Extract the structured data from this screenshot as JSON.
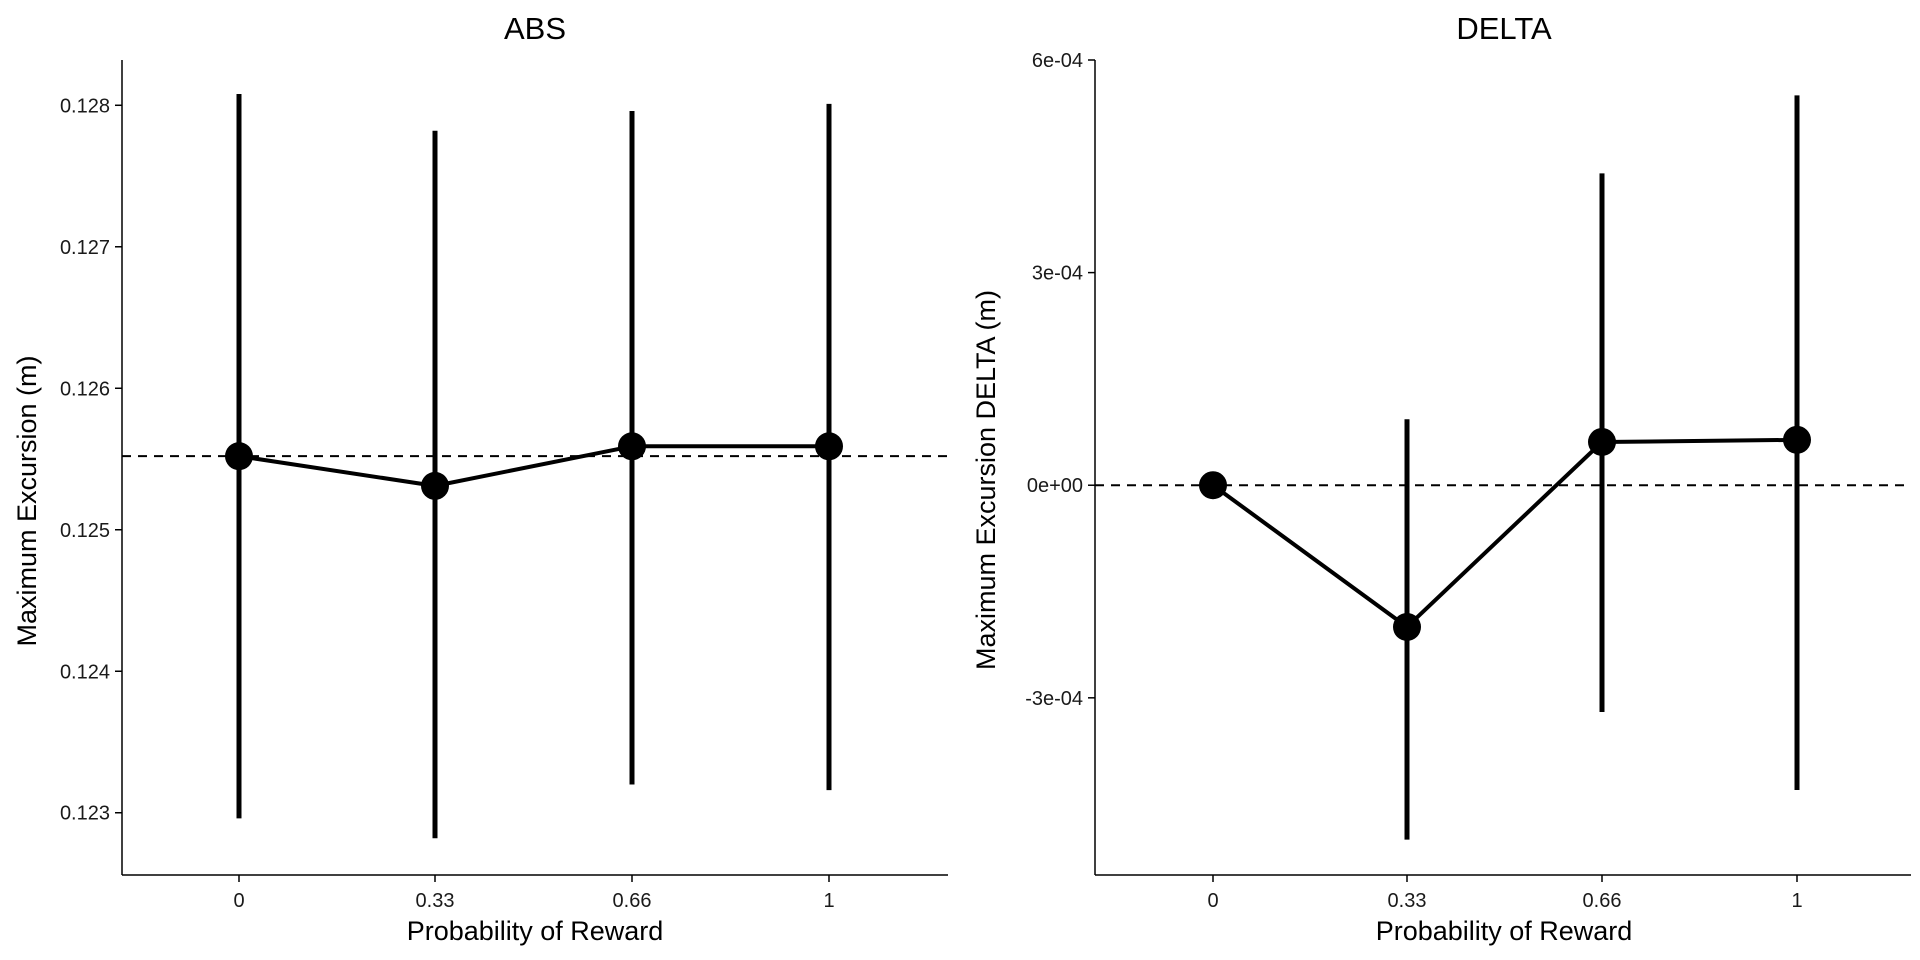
{
  "chart_data": [
    {
      "type": "line",
      "title": "ABS",
      "xlabel": "Probability of Reward",
      "ylabel": "Maximum Excursion (m)",
      "categories": [
        "0",
        "0.33",
        "0.66",
        "1"
      ],
      "yticks": [
        0.123,
        0.124,
        0.125,
        0.126,
        0.127,
        0.128
      ],
      "ytick_labels": [
        "0.123",
        "0.124",
        "0.125",
        "0.126",
        "0.127",
        "0.128"
      ],
      "ylim": [
        0.12256,
        0.12832
      ],
      "reference_line": 0.12552,
      "series": [
        {
          "values": [
            0.12552,
            0.12531,
            0.12559,
            0.12559
          ],
          "lower": [
            0.12296,
            0.12282,
            0.1232,
            0.12316
          ],
          "upper": [
            0.12808,
            0.12782,
            0.12796,
            0.12801
          ]
        }
      ],
      "grid": false,
      "legend": "none"
    },
    {
      "type": "line",
      "title": "DELTA",
      "xlabel": "Probability of Reward",
      "ylabel": "Maximum Excursion DELTA (m)",
      "categories": [
        "0",
        "0.33",
        "0.66",
        "1"
      ],
      "yticks": [
        -0.0003,
        0,
        0.0003,
        0.0006
      ],
      "ytick_labels": [
        "-3e-04",
        "0e+00",
        "3e-04",
        "6e-04"
      ],
      "ylim": [
        -0.00055,
        0.0006
      ],
      "reference_line": 0,
      "series": [
        {
          "values": [
            0,
            -0.0002,
            6.1e-05,
            6.4e-05
          ],
          "lower": [
            0,
            -0.0005,
            -0.00032,
            -0.00043
          ],
          "upper": [
            0,
            9.3e-05,
            0.00044,
            0.00055
          ]
        }
      ],
      "grid": false,
      "legend": "none"
    }
  ]
}
